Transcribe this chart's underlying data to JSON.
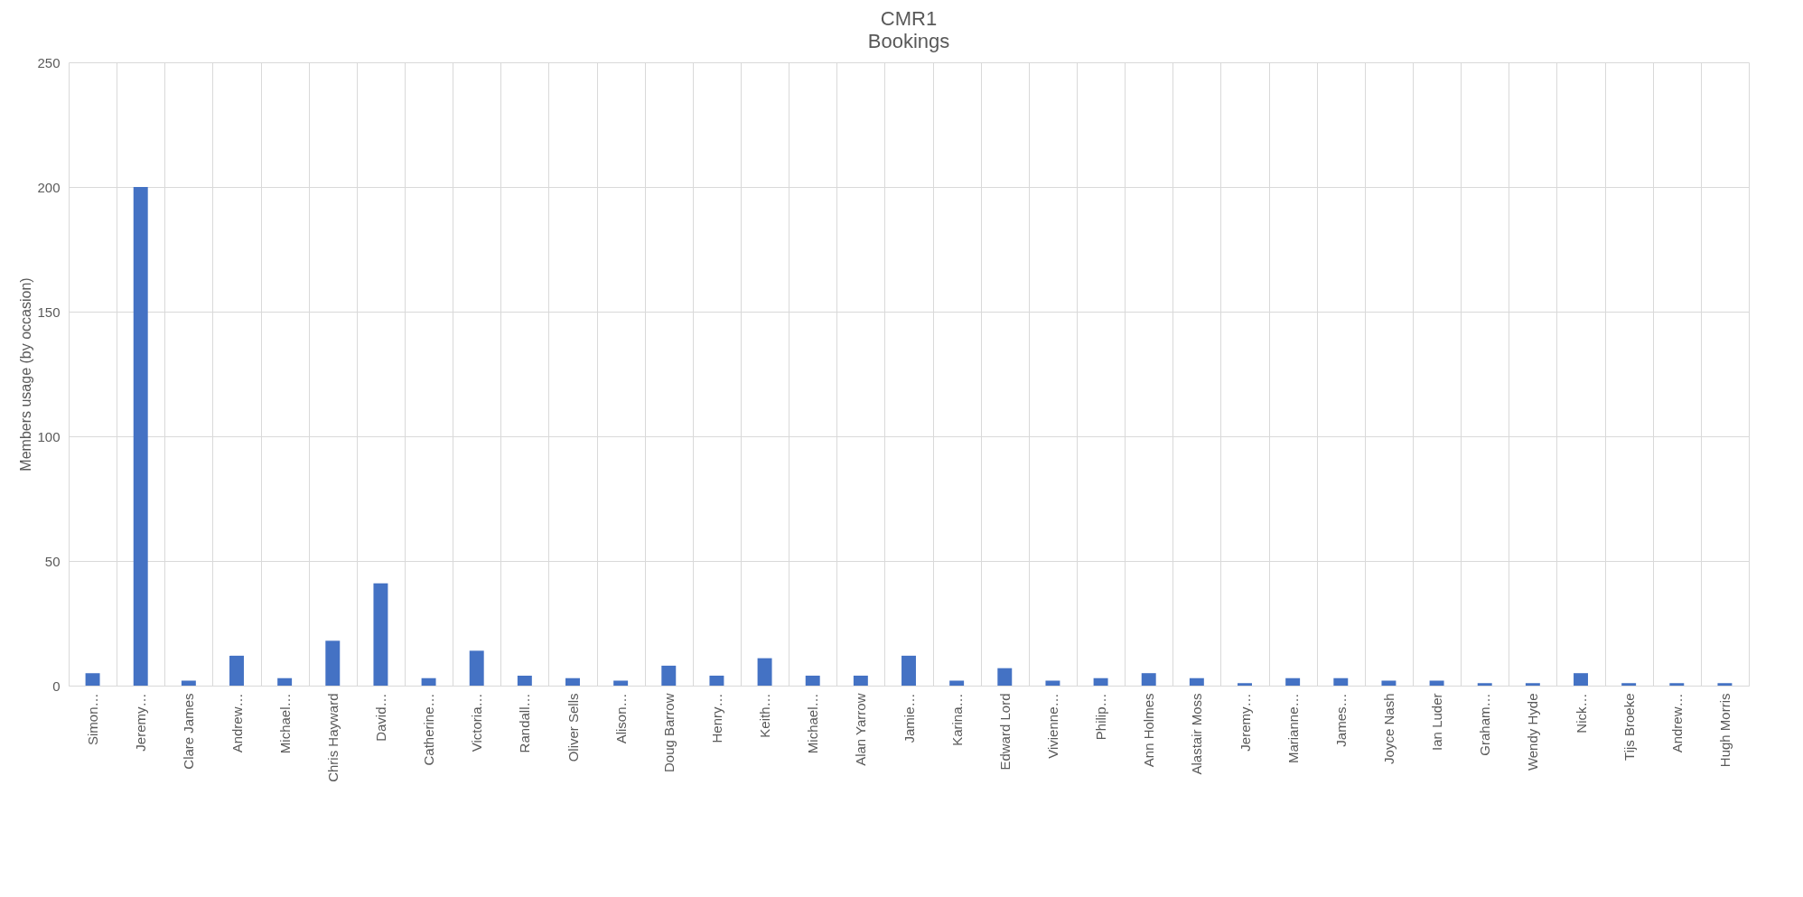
{
  "chart_data": {
    "type": "bar",
    "title": "CMR1",
    "subtitle": "Bookings",
    "ylabel": "Members usage (by occasion)",
    "categories": [
      "Simon…",
      "Jeremy…",
      "Clare James",
      "Andrew…",
      "Michael…",
      "Chris Hayward",
      "David…",
      "Catherine…",
      "Victoria…",
      "Randall…",
      "Oliver Sells",
      "Alison…",
      "Doug Barrow",
      "Henry…",
      "Keith…",
      "Michael…",
      "Alan Yarrow",
      "Jamie…",
      "Karina…",
      "Edward Lord",
      "Vivienne…",
      "Philip…",
      "Ann Holmes",
      "Alastair Moss",
      "Jeremy…",
      "Marianne…",
      "James…",
      "Joyce Nash",
      "Ian Luder",
      "Graham…",
      "Wendy Hyde",
      "Nick…",
      "Tijs Broeke",
      "Andrew…",
      "Hugh Morris"
    ],
    "values": [
      5,
      200,
      2,
      12,
      3,
      18,
      41,
      3,
      14,
      4,
      3,
      2,
      8,
      4,
      11,
      4,
      4,
      12,
      2,
      7,
      2,
      3,
      5,
      3,
      1,
      3,
      3,
      2,
      2,
      1,
      1,
      5,
      1,
      1,
      1
    ],
    "color": "#4472c4",
    "ylim": [
      0,
      250
    ],
    "yticks": [
      0,
      50,
      100,
      150,
      200,
      250
    ],
    "grid": true
  }
}
